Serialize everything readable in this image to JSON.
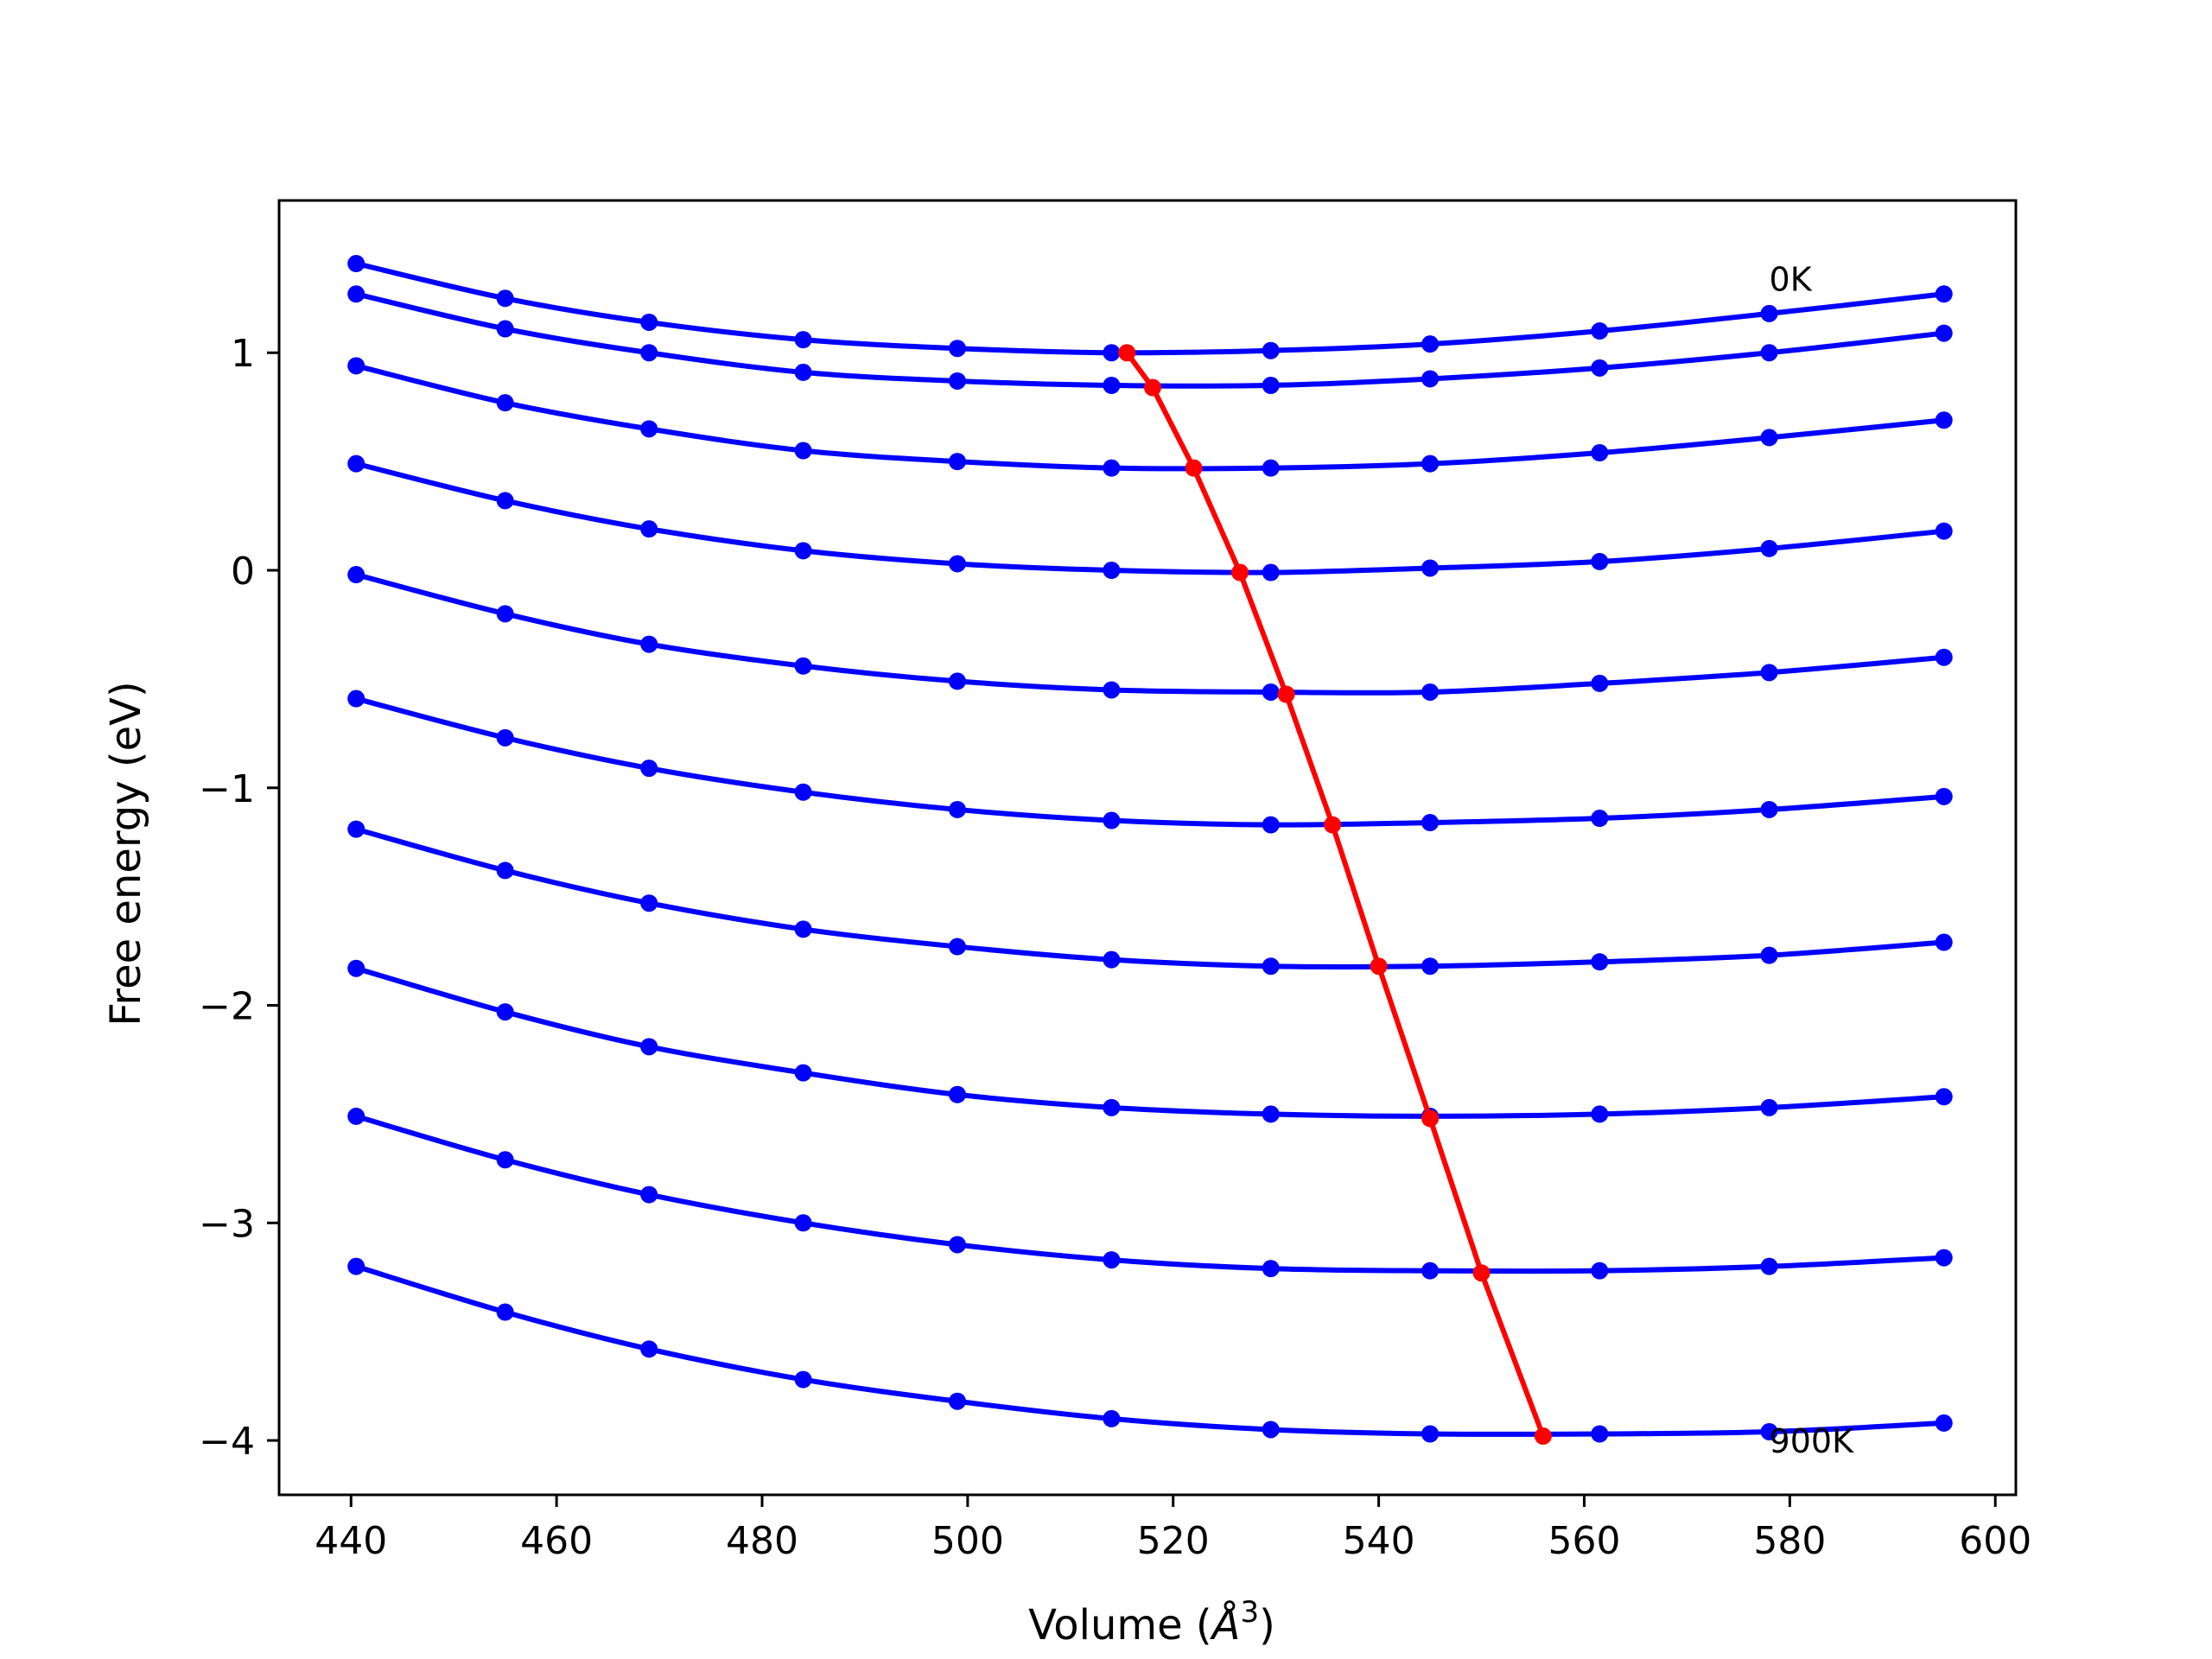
{
  "chart_data": {
    "type": "line",
    "xlabel_prefix": "Volume (",
    "xlabel_symbol": "Å",
    "xlabel_sup": "3",
    "xlabel_suffix": ")",
    "ylabel": "Free energy (eV)",
    "xlim": [
      433,
      602
    ],
    "ylim": [
      -4.25,
      1.7
    ],
    "xticks": [
      440,
      460,
      480,
      500,
      520,
      540,
      560,
      580,
      600
    ],
    "yticks": [
      1,
      0,
      -1,
      -2,
      -3,
      -4
    ],
    "ytick_labels": [
      "1",
      "0",
      "−1",
      "−2",
      "−3",
      "−4"
    ],
    "annotations": [
      {
        "text": "0K",
        "x": 578,
        "y": 1.34
      },
      {
        "text": "900K",
        "x": 578,
        "y": -4.0
      }
    ],
    "x": [
      440.5,
      455,
      469,
      484,
      499,
      514,
      529.5,
      545,
      561.5,
      578,
      595
    ],
    "series": [
      {
        "values": [
          1.41,
          1.25,
          1.14,
          1.06,
          1.02,
          1.0,
          1.01,
          1.04,
          1.1,
          1.18,
          1.27
        ]
      },
      {
        "values": [
          1.27,
          1.11,
          1.0,
          0.91,
          0.87,
          0.85,
          0.85,
          0.88,
          0.93,
          1.0,
          1.09
        ]
      },
      {
        "values": [
          0.94,
          0.77,
          0.65,
          0.55,
          0.5,
          0.47,
          0.47,
          0.49,
          0.54,
          0.61,
          0.69
        ]
      },
      {
        "values": [
          0.49,
          0.32,
          0.19,
          0.09,
          0.03,
          0.0,
          -0.01,
          0.01,
          0.04,
          0.1,
          0.18
        ]
      },
      {
        "values": [
          -0.02,
          -0.2,
          -0.34,
          -0.44,
          -0.51,
          -0.55,
          -0.56,
          -0.56,
          -0.52,
          -0.47,
          -0.4
        ]
      },
      {
        "values": [
          -0.59,
          -0.77,
          -0.91,
          -1.02,
          -1.1,
          -1.15,
          -1.17,
          -1.16,
          -1.14,
          -1.1,
          -1.04
        ]
      },
      {
        "values": [
          -1.19,
          -1.38,
          -1.53,
          -1.65,
          -1.73,
          -1.79,
          -1.82,
          -1.82,
          -1.8,
          -1.77,
          -1.71
        ]
      },
      {
        "values": [
          -1.83,
          -2.03,
          -2.19,
          -2.31,
          -2.41,
          -2.47,
          -2.5,
          -2.51,
          -2.5,
          -2.47,
          -2.42
        ]
      },
      {
        "values": [
          -2.51,
          -2.71,
          -2.87,
          -3.0,
          -3.1,
          -3.17,
          -3.21,
          -3.22,
          -3.22,
          -3.2,
          -3.16
        ]
      },
      {
        "values": [
          -3.2,
          -3.41,
          -3.58,
          -3.72,
          -3.82,
          -3.9,
          -3.95,
          -3.97,
          -3.97,
          -3.96,
          -3.92
        ]
      }
    ],
    "minima": {
      "x": [
        515.5,
        518,
        522,
        526.5,
        531,
        535.5,
        540,
        545,
        550,
        556
      ],
      "y": [
        1.0,
        0.84,
        0.47,
        -0.01,
        -0.57,
        -1.17,
        -1.82,
        -2.52,
        -3.23,
        -3.98
      ]
    },
    "colors": {
      "curves": "#0000ff",
      "minima": "#ff0000",
      "axes": "#000000"
    }
  }
}
